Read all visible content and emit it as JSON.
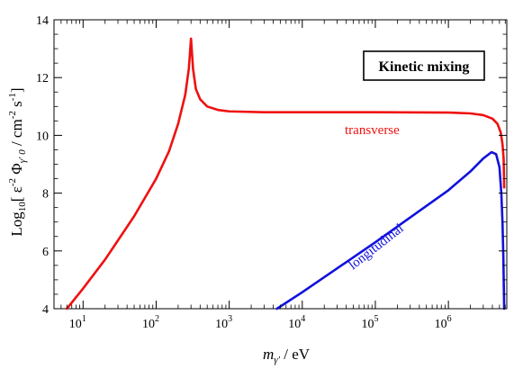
{
  "chart_data": {
    "type": "line",
    "title": "",
    "xlabel_main": "m",
    "xlabel_sub": "γ′",
    "xlabel_unit": " / eV",
    "ylabel_prefix": "Log",
    "ylabel_base": "10",
    "ylabel_body": "[ ε",
    "ylabel_exp": "-2",
    "ylabel_phi": " Φ",
    "ylabel_phi_sub": "γ′ 0",
    "ylabel_mid": " / cm",
    "ylabel_cm_exp": "-2",
    "ylabel_s": " s",
    "ylabel_s_exp": "-1",
    "ylabel_close": "]",
    "x_scale": "log",
    "xlim": [
      4,
      6300000
    ],
    "ylim": [
      4,
      14
    ],
    "x_ticks": [
      {
        "value": 10,
        "base": "10",
        "exp": "1"
      },
      {
        "value": 100,
        "base": "10",
        "exp": "2"
      },
      {
        "value": 1000,
        "base": "10",
        "exp": "3"
      },
      {
        "value": 10000,
        "base": "10",
        "exp": "4"
      },
      {
        "value": 100000,
        "base": "10",
        "exp": "5"
      },
      {
        "value": 1000000,
        "base": "10",
        "exp": "6"
      }
    ],
    "y_ticks": [
      "4",
      "6",
      "8",
      "10",
      "12",
      "14"
    ],
    "annotation": "Kinetic mixing",
    "series": [
      {
        "name": "transverse",
        "color": "#ee1111",
        "x": [
          6,
          10,
          20,
          50,
          100,
          150,
          200,
          250,
          280,
          300,
          320,
          350,
          400,
          500,
          700,
          1000,
          3000,
          10000,
          100000,
          1000000,
          2000000,
          3000000,
          4000000,
          4700000,
          5200000,
          5500000,
          5700000,
          5800000
        ],
        "y": [
          4.0,
          4.7,
          5.7,
          7.2,
          8.5,
          9.45,
          10.4,
          11.4,
          12.3,
          13.35,
          12.3,
          11.6,
          11.25,
          11.0,
          10.88,
          10.83,
          10.8,
          10.8,
          10.8,
          10.79,
          10.76,
          10.7,
          10.58,
          10.4,
          10.1,
          9.7,
          9.2,
          8.2
        ]
      },
      {
        "name": "longitudinal",
        "color": "#1111dd",
        "x": [
          4500,
          10000,
          100000,
          1000000,
          2000000,
          3000000,
          3900000,
          4500000,
          5000000,
          5300000,
          5500000,
          5650000,
          5750000,
          5800000
        ],
        "y": [
          4.0,
          4.57,
          6.3,
          8.1,
          8.75,
          9.2,
          9.42,
          9.35,
          8.9,
          8.0,
          7.0,
          5.8,
          4.6,
          4.0
        ]
      }
    ]
  }
}
